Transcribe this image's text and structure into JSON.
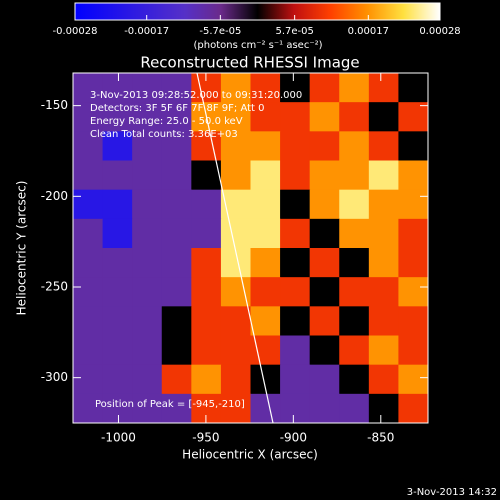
{
  "chart_data": {
    "type": "heatmap",
    "title": "Reconstructed RHESSI Image",
    "x_label": "Heliocentric X (arcsec)",
    "y_label": "Heliocentric Y (arcsec)",
    "xlim": [
      -1026,
      -823
    ],
    "ylim": [
      -325,
      -132
    ],
    "xticks": [
      -1000,
      -950,
      -900,
      -850
    ],
    "yticks": [
      -150,
      -200,
      -250,
      -300
    ],
    "colorbar": {
      "clim": [
        -0.00028,
        0.00028
      ],
      "ticks": [
        -0.00028,
        -0.00017,
        {
          "value": -5.7e-05,
          "label": "-5.7e-05"
        },
        {
          "value": 5.7e-05,
          "label": "5.7e-05"
        },
        0.00017,
        0.00028
      ],
      "units": "(photons cm⁻² s⁻¹ asec⁻²)"
    },
    "annotations": [
      "3-Nov-2013 09:28:52.000 to 09:31:20.000",
      "Detectors: 3F 5F 6F 7F 8F 9F; Att 0",
      "Energy Range: 25.0 - 50.0 keV",
      "Clean     Total counts: 3.36E+03"
    ],
    "peak_label": "Position of Peak = [-945,-210]",
    "timestamp": "3-Nov-2013 14:32",
    "z": [
      [
        -8e-05,
        -8e-05,
        -8e-05,
        -8e-05,
        0.0001,
        0.00017,
        0.0001,
        0,
        0.0001,
        0.00017,
        0.0001,
        0
      ],
      [
        -8e-05,
        -8e-05,
        -8e-05,
        -8e-05,
        0.00017,
        0.00017,
        0.0001,
        0.0001,
        0.00017,
        0.0001,
        0,
        0.0001
      ],
      [
        -8e-05,
        -0.0002,
        -8e-05,
        -8e-05,
        0.0001,
        0.00017,
        0.00017,
        0.0001,
        0.0001,
        0.00017,
        0.0001,
        0
      ],
      [
        -8e-05,
        -8e-05,
        -8e-05,
        -8e-05,
        0,
        0.00017,
        0.00024,
        0.0001,
        0.00017,
        0.00017,
        0.00024,
        0.00017
      ],
      [
        -0.0002,
        -0.0002,
        -8e-05,
        -8e-05,
        -8e-05,
        0.00024,
        0.00024,
        0,
        0.00017,
        0.00024,
        0.00017,
        0.00017
      ],
      [
        -8e-05,
        -0.0002,
        -8e-05,
        -8e-05,
        -8e-05,
        0.00024,
        0.00024,
        0.0001,
        0,
        0.00017,
        0.00017,
        0.0001
      ],
      [
        -8e-05,
        -8e-05,
        -8e-05,
        -8e-05,
        0.0001,
        0.00024,
        0.00017,
        0,
        0.0001,
        0,
        0.00017,
        0.0001
      ],
      [
        -8e-05,
        -8e-05,
        -8e-05,
        -8e-05,
        0.0001,
        0.00017,
        0.0001,
        0.0001,
        0,
        0.0001,
        0.0001,
        0.00017
      ],
      [
        -8e-05,
        -8e-05,
        -8e-05,
        0,
        0.0001,
        0.0001,
        0.00017,
        0,
        0.0001,
        0,
        0.0001,
        0.0001
      ],
      [
        -8e-05,
        -8e-05,
        -8e-05,
        0,
        0.0001,
        0.0001,
        0.0001,
        -8e-05,
        0,
        0.0001,
        0.00017,
        0.0001
      ],
      [
        -8e-05,
        -8e-05,
        -8e-05,
        0.0001,
        0.00017,
        0.0001,
        0,
        -8e-05,
        -8e-05,
        0,
        0.0001,
        0.00017
      ],
      [
        -8e-05,
        -8e-05,
        -8e-05,
        -8e-05,
        0.0001,
        0.0001,
        -8e-05,
        -8e-05,
        -8e-05,
        -8e-05,
        0,
        0.0001
      ]
    ]
  }
}
